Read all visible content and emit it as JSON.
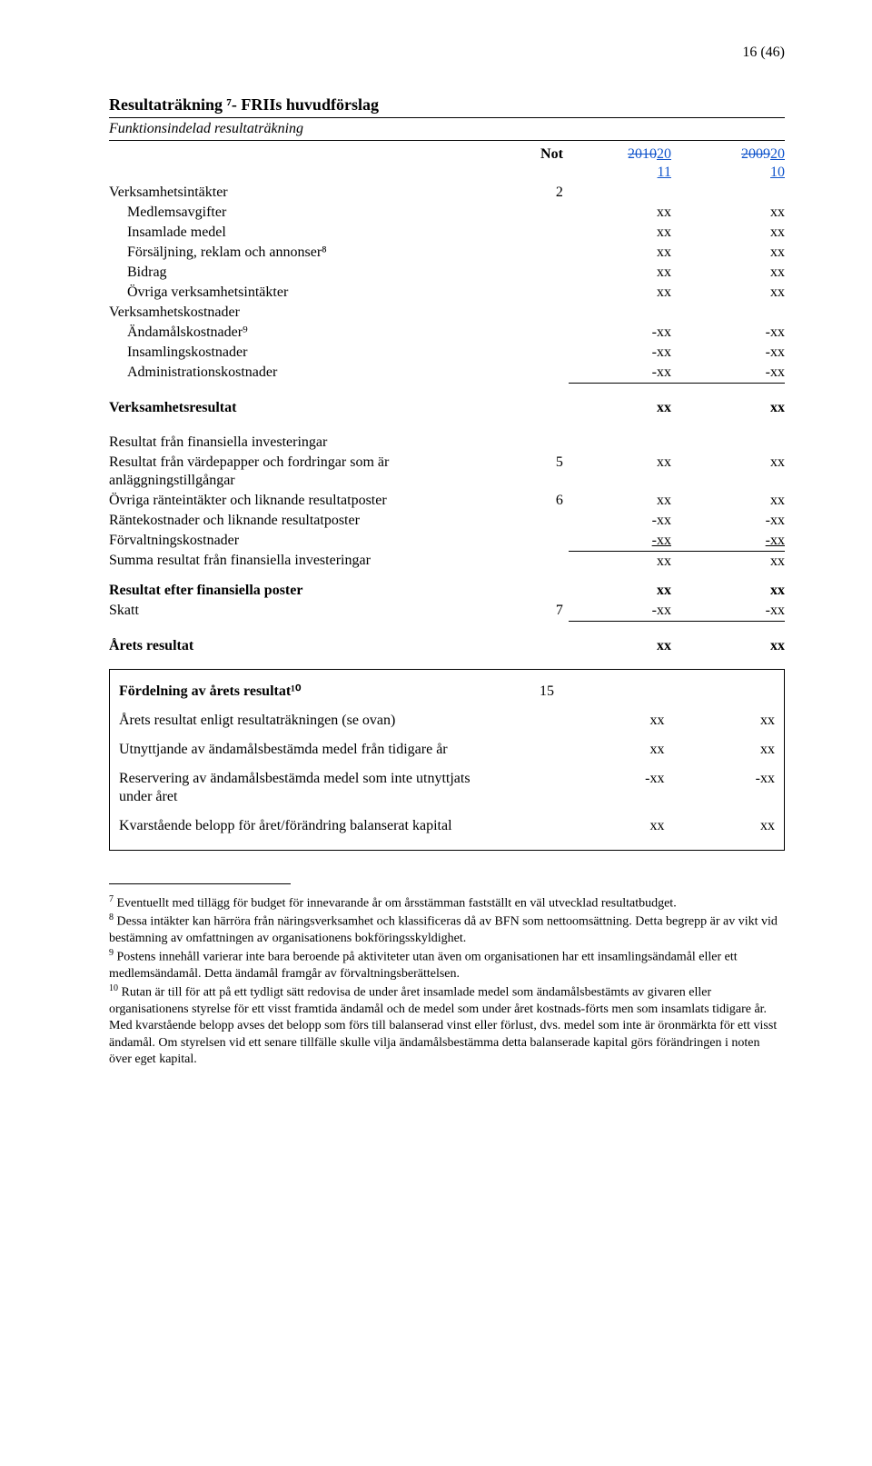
{
  "page_number": "16 (46)",
  "title": "Resultaträkning ⁷- FRIIs huvudförslag",
  "subtitle": "Funktionsindelad resultaträkning",
  "header": {
    "not": "Not",
    "cy_strike": "2010",
    "cy_under": "20\n11",
    "py_strike": "2009",
    "py_under": "20\n10",
    "cy_html": "201020",
    "cy_line2": "11",
    "py_html": "200920",
    "py_line2": "10"
  },
  "rows": [
    {
      "label": "Verksamhetsintäkter",
      "not": "2",
      "cy": "",
      "py": "",
      "classes": ""
    },
    {
      "label": "Medlemsavgifter",
      "not": "",
      "cy": "xx",
      "py": "xx",
      "indent": 1
    },
    {
      "label": "Insamlade medel",
      "not": "",
      "cy": "xx",
      "py": "xx",
      "indent": 1
    },
    {
      "label": "Försäljning, reklam och annonser⁸",
      "not": "",
      "cy": "xx",
      "py": "xx",
      "indent": 1
    },
    {
      "label": "Bidrag",
      "not": "",
      "cy": "xx",
      "py": "xx",
      "indent": 1
    },
    {
      "label": "Övriga verksamhetsintäkter",
      "not": "",
      "cy": "xx",
      "py": "xx",
      "indent": 1
    },
    {
      "label": "Verksamhetskostnader",
      "not": "",
      "cy": "",
      "py": ""
    },
    {
      "label": "Ändamålskostnader⁹",
      "not": "",
      "cy": "-xx",
      "py": "-xx",
      "indent": 1
    },
    {
      "label": "Insamlingskostnader",
      "not": "",
      "cy": "-xx",
      "py": "-xx",
      "indent": 1
    },
    {
      "label": "Administrationskostnader",
      "not": "",
      "cy": "-xx",
      "py": "-xx",
      "indent": 1,
      "ub": true
    },
    {
      "spacer": true
    },
    {
      "label": "Verksamhetsresultat",
      "not": "",
      "cy": "xx",
      "py": "xx",
      "bold": true
    },
    {
      "spacer": true
    },
    {
      "label": "Resultat från finansiella investeringar",
      "not": "",
      "cy": "",
      "py": ""
    },
    {
      "label": "Resultat från värdepapper och fordringar som är anläggningstillgångar",
      "not": "5",
      "cy": "xx",
      "py": "xx"
    },
    {
      "label": "Övriga ränteintäkter och liknande resultatposter",
      "not": "6",
      "cy": "xx",
      "py": "xx"
    },
    {
      "label": "Räntekostnader och liknande resultatposter",
      "not": "",
      "cy": "-xx",
      "py": "-xx"
    },
    {
      "label": "Förvaltningskostnader",
      "not": "",
      "cy": "-xx",
      "py": "-xx",
      "u": true
    },
    {
      "label": "Summa resultat från finansiella investeringar",
      "not": "",
      "cy": "xx",
      "py": "xx",
      "tb": true
    },
    {
      "spacer": true,
      "size": "sm"
    },
    {
      "label": "Resultat efter finansiella poster",
      "not": "",
      "cy": "xx",
      "py": "xx",
      "bold": true
    },
    {
      "label": "Skatt",
      "not": "7",
      "cy": "-xx",
      "py": "-xx",
      "ub": true
    },
    {
      "spacer": true
    },
    {
      "label": "Årets resultat",
      "not": "",
      "cy": "xx",
      "py": "xx",
      "bold": true
    }
  ],
  "box": {
    "title": "Fördelning av årets resultat¹⁰",
    "not": "15",
    "rows": [
      {
        "label": "Årets resultat enligt resultaträkningen (se ovan)",
        "cy": "xx",
        "py": "xx"
      },
      {
        "label": "Utnyttjande av ändamålsbestämda medel från tidigare år",
        "cy": "xx",
        "py": "xx"
      },
      {
        "label": "Reservering av ändamålsbestämda medel som inte utnyttjats under året",
        "cy": "-xx",
        "py": "-xx"
      },
      {
        "label": "Kvarstående belopp för året/förändring balanserat kapital",
        "cy": "xx",
        "py": "xx"
      }
    ]
  },
  "footnotes": [
    {
      "n": "7",
      "text": "Eventuellt med tillägg för budget för innevarande år om årsstämman fastställt en väl utvecklad resultatbudget."
    },
    {
      "n": "8",
      "text": "Dessa intäkter kan härröra från näringsverksamhet och klassificeras då av BFN som nettoomsättning. Detta begrepp är av vikt vid bestämning av omfattningen av organisationens bokföringsskyldighet."
    },
    {
      "n": "9",
      "text": "Postens innehåll varierar inte bara beroende på aktiviteter utan även om organisationen har ett insamlingsändamål eller ett medlemsändamål. Detta ändamål framgår av förvaltningsberättelsen."
    },
    {
      "n": "10",
      "text": "Rutan är till för att på ett tydligt sätt redovisa de under året insamlade medel som ändamålsbestämts av givaren eller organisationens styrelse för ett visst framtida ändamål och de medel som under året kostnads-förts men som insamlats tidigare år. Med kvarstående belopp avses det belopp som förs till balanserad vinst eller förlust, dvs. medel som inte är öronmärkta för ett visst ändamål. Om styrelsen vid ett senare tillfälle skulle vilja ändamålsbestämma detta balanserade kapital görs förändringen i noten över eget kapital."
    }
  ]
}
